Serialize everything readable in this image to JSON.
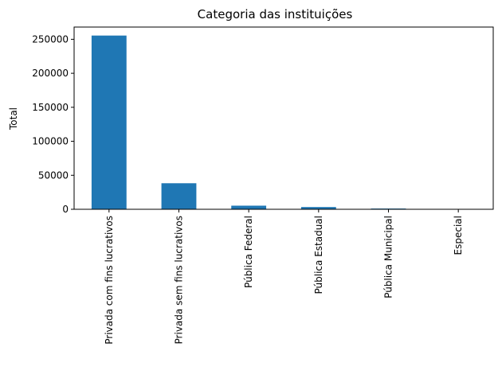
{
  "chart_data": {
    "type": "bar",
    "title": "Categoria das instituições",
    "xlabel": "",
    "ylabel": "Total",
    "categories": [
      "Privada com fins lucrativos",
      "Privada sem fins lucrativos",
      "Pública Federal",
      "Pública Estadual",
      "Pública Municipal",
      "Especial"
    ],
    "values": [
      255500,
      38300,
      5300,
      3300,
      1100,
      80
    ],
    "ylim": [
      0,
      268000
    ],
    "yticks": [
      0,
      50000,
      100000,
      150000,
      200000,
      250000
    ],
    "ytick_labels": [
      "0",
      "50000",
      "100000",
      "150000",
      "200000",
      "250000"
    ],
    "bar_color": "#1f77b4",
    "grid": false,
    "legend": "none"
  }
}
